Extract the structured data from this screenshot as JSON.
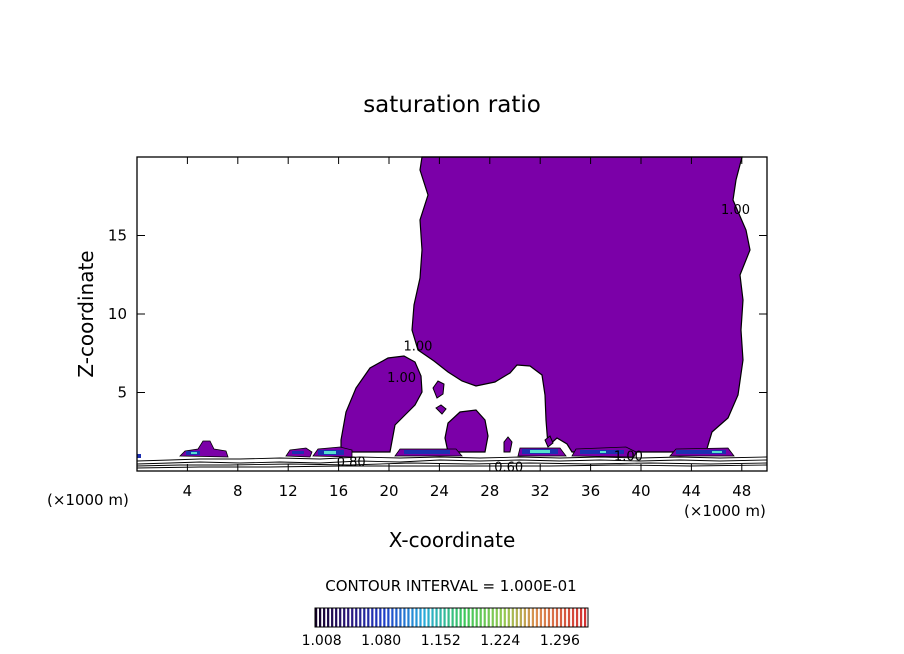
{
  "chart_data": {
    "type": "heatmap",
    "title": "saturation ratio",
    "xlabel": "X-coordinate",
    "ylabel": "Z-coordinate",
    "x_unit_left": "(×1000 m)",
    "x_unit_right": "(×1000 m)",
    "xlim": [
      0,
      50
    ],
    "ylim": [
      0,
      20
    ],
    "x_ticks": [
      "4",
      "8",
      "12",
      "16",
      "20",
      "24",
      "28",
      "32",
      "36",
      "40",
      "44",
      "48"
    ],
    "y_ticks": [
      "5",
      "10",
      "15"
    ],
    "x_tick_values": [
      4,
      8,
      12,
      16,
      20,
      24,
      28,
      32,
      36,
      40,
      44,
      48
    ],
    "y_tick_values": [
      5,
      10,
      15
    ],
    "contour_interval_text": "CONTOUR INTERVAL = 1.000E-01",
    "contour_labels": [
      {
        "text": "1.00",
        "x": 47.5,
        "z": 16.7
      },
      {
        "text": "1.00",
        "x": 22.3,
        "z": 8.0
      },
      {
        "text": "1.00",
        "x": 21.0,
        "z": 6.0
      },
      {
        "text": "0.80",
        "x": 17.0,
        "z": 0.6
      },
      {
        "text": "0.60",
        "x": 29.5,
        "z": 0.3
      },
      {
        "text": "1.00",
        "x": 39.0,
        "z": 1.0
      }
    ],
    "colorbar_ticks": [
      "1.008",
      "1.080",
      "1.152",
      "1.224",
      "1.296"
    ],
    "colorbar_range": [
      1.0,
      1.33
    ],
    "colors": {
      "supersaturated": "#7b00a8",
      "contour_line": "#000000",
      "background": "#ffffff"
    }
  }
}
